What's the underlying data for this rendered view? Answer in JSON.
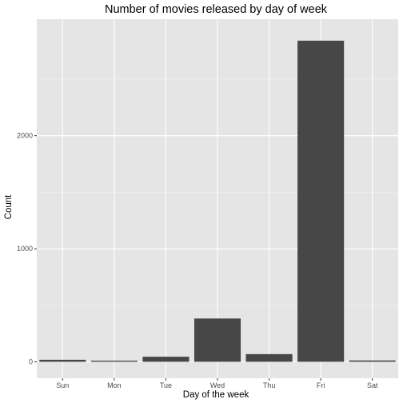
{
  "chart_data": {
    "type": "bar",
    "title": "Number of movies released by day of week",
    "xlabel": "Day of the week",
    "ylabel": "Count",
    "categories": [
      "Sun",
      "Mon",
      "Tue",
      "Wed",
      "Thu",
      "Fri",
      "Sat"
    ],
    "values": [
      18,
      10,
      45,
      383,
      68,
      2840,
      12
    ],
    "ylim": [
      -145,
      3030
    ],
    "yticks": [
      0,
      1000,
      2000
    ],
    "ytick_labels": [
      "0",
      "1000",
      "2000"
    ],
    "grid": true,
    "colors": {
      "panel_background": "#e5e5e5",
      "grid_major": "#ffffff",
      "bar_fill": "#474747",
      "tick_text": "#4d4d4d"
    }
  }
}
